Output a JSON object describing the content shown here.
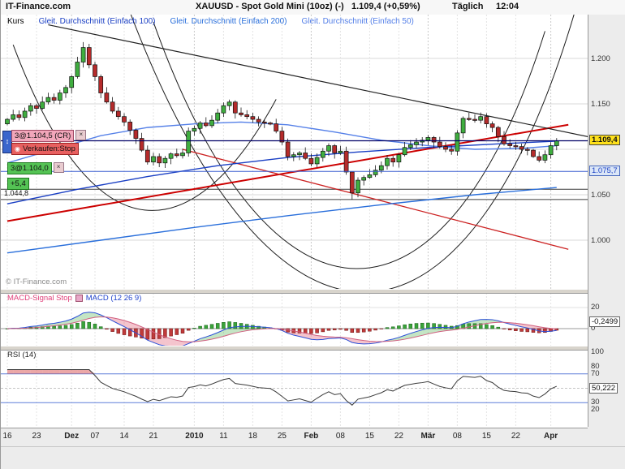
{
  "header": {
    "brand": "IT-Finance.com",
    "title": "XAUUSD - Spot Gold Mini (10oz) (-)",
    "quote": "1.109,4 (+0,59%)",
    "period": "Täglich",
    "time": "12:04"
  },
  "icons": {
    "close": "×",
    "drag": "↕",
    "eye": "◉"
  },
  "price_panel": {
    "name": "Kurs",
    "legend": [
      {
        "label": "Gleit. Durchschnitt (Einfach 100)"
      },
      {
        "label": "Gleit. Durchschnitt (Einfach 200)"
      },
      {
        "label": "Gleit. Durchschnitt (Einfach 50)"
      }
    ],
    "orders": {
      "stop_order": "3@1.104,5 (CR)",
      "stop_type": "Verkaufen:Stop",
      "position": "3@1.104,0",
      "pnl": "+5,4",
      "low_level": "1.044,8"
    },
    "watermark": "© IT-Finance.com",
    "price_tag": "1.109,4",
    "stop_tag": "1.075,7"
  },
  "macd_panel": {
    "legend_signal": "MACD-Signal Stop",
    "legend_macd": "MACD (12 26 9)",
    "value": "-0,2499"
  },
  "rsi_panel": {
    "label": "RSI (14)",
    "value": "50,222"
  },
  "chart_data": {
    "type": "candlestick",
    "first_open": 1128,
    "closes": [
      1133,
      1138,
      1135,
      1142,
      1148,
      1145,
      1152,
      1157,
      1154,
      1162,
      1168,
      1180,
      1196,
      1212,
      1193,
      1180,
      1162,
      1152,
      1142,
      1136,
      1130,
      1121,
      1112,
      1099,
      1086,
      1092,
      1085,
      1090,
      1095,
      1093,
      1096,
      1120,
      1123,
      1129,
      1126,
      1132,
      1140,
      1148,
      1152,
      1140,
      1138,
      1136,
      1133,
      1130,
      1129,
      1128,
      1120,
      1108,
      1092,
      1094,
      1096,
      1090,
      1084,
      1091,
      1098,
      1104,
      1096,
      1098,
      1075,
      1052,
      1066,
      1069,
      1072,
      1077,
      1082,
      1090,
      1086,
      1094,
      1102,
      1105,
      1108,
      1110,
      1113,
      1108,
      1103,
      1100,
      1098,
      1118,
      1134,
      1133,
      1132,
      1136,
      1128,
      1124,
      1114,
      1106,
      1104,
      1103,
      1100,
      1099,
      1092,
      1088,
      1094,
      1104,
      1109.4
    ],
    "wick_overrides": {
      "13": [
        1218,
        1190
      ],
      "59": [
        1075,
        1045
      ]
    },
    "ylim": [
      950,
      1260
    ],
    "grid_prices": [
      1200,
      1150,
      1100,
      1050,
      1000
    ],
    "price_ticks": [
      {
        "label": "1.200",
        "p": 1200
      },
      {
        "label": "1.150",
        "p": 1150
      },
      {
        "label": "1.050",
        "p": 1050
      },
      {
        "label": "1.000",
        "p": 1000
      }
    ],
    "current_price": 1109.4,
    "stop_price": 1075.7,
    "levels": [
      1056,
      1044.8
    ],
    "ma": [
      {
        "name": "SMA100",
        "color": "#1a3fc4",
        "points": [
          [
            0,
            1040
          ],
          [
            12,
            1056
          ],
          [
            24,
            1070
          ],
          [
            36,
            1082
          ],
          [
            48,
            1091
          ],
          [
            60,
            1097
          ],
          [
            72,
            1102
          ],
          [
            84,
            1106
          ],
          [
            94,
            1109
          ]
        ]
      },
      {
        "name": "SMA200",
        "color": "#2a6fdb",
        "points": [
          [
            0,
            986
          ],
          [
            16,
            1000
          ],
          [
            32,
            1014
          ],
          [
            48,
            1027
          ],
          [
            64,
            1039
          ],
          [
            80,
            1050
          ],
          [
            94,
            1058
          ]
        ]
      },
      {
        "name": "SMA50",
        "color": "#5580e8",
        "points": [
          [
            0,
            1085
          ],
          [
            8,
            1100
          ],
          [
            16,
            1115
          ],
          [
            24,
            1124
          ],
          [
            32,
            1128
          ],
          [
            40,
            1130
          ],
          [
            48,
            1127
          ],
          [
            56,
            1119
          ],
          [
            64,
            1110
          ],
          [
            72,
            1104
          ],
          [
            80,
            1100
          ],
          [
            88,
            1101
          ],
          [
            94,
            1104
          ]
        ]
      }
    ],
    "trendlines": [
      {
        "color": "#cc0000",
        "width": 2,
        "points": [
          [
            0,
            1021
          ],
          [
            96,
            1127
          ]
        ]
      },
      {
        "color": "#cc2222",
        "width": 1.3,
        "points": [
          [
            30,
            1100
          ],
          [
            96,
            990
          ]
        ]
      },
      {
        "color": "#222222",
        "width": 1.2,
        "points": [
          [
            7,
            1237
          ],
          [
            100,
            1113
          ]
        ]
      }
    ],
    "arcs": [
      {
        "p0": [
          1,
          1215
        ],
        "c1": [
          15,
          975
        ],
        "c2": [
          32,
          990
        ],
        "p1": [
          46,
          1155
        ]
      },
      {
        "p0": [
          25,
          1240
        ],
        "c1": [
          45,
          880
        ],
        "c2": [
          75,
          880
        ],
        "p1": [
          92,
          1230
        ]
      },
      {
        "p0": [
          20,
          1268
        ],
        "c1": [
          45,
          830
        ],
        "c2": [
          80,
          830
        ],
        "p1": [
          99,
          1295
        ]
      }
    ],
    "x_labels": [
      {
        "label": "16",
        "i": 0,
        "bold": false
      },
      {
        "label": "23",
        "i": 5,
        "bold": false
      },
      {
        "label": "Dez",
        "i": 11,
        "bold": true
      },
      {
        "label": "07",
        "i": 15,
        "bold": false
      },
      {
        "label": "14",
        "i": 20,
        "bold": false
      },
      {
        "label": "21",
        "i": 25,
        "bold": false
      },
      {
        "label": "2010",
        "i": 32,
        "bold": true
      },
      {
        "label": "11",
        "i": 37,
        "bold": false
      },
      {
        "label": "18",
        "i": 42,
        "bold": false
      },
      {
        "label": "25",
        "i": 47,
        "bold": false
      },
      {
        "label": "Feb",
        "i": 52,
        "bold": true
      },
      {
        "label": "08",
        "i": 57,
        "bold": false
      },
      {
        "label": "15",
        "i": 62,
        "bold": false
      },
      {
        "label": "22",
        "i": 67,
        "bold": false
      },
      {
        "label": "Mär",
        "i": 72,
        "bold": true
      },
      {
        "label": "08",
        "i": 77,
        "bold": false
      },
      {
        "label": "15",
        "i": 82,
        "bold": false
      },
      {
        "label": "22",
        "i": 87,
        "bold": false
      },
      {
        "label": "Apr",
        "i": 93,
        "bold": true
      }
    ],
    "macd": {
      "params": [
        12,
        26,
        9
      ],
      "ticks": [
        {
          "label": "20",
          "v": 20
        },
        {
          "label": "0",
          "v": 0
        }
      ]
    },
    "rsi": {
      "period": 14,
      "lines": [
        70,
        30
      ],
      "mid": 50,
      "ticks": [
        {
          "label": "100",
          "v": 100
        },
        {
          "label": "80",
          "v": 80
        },
        {
          "label": "70",
          "v": 70
        },
        {
          "label": "50",
          "v": 50
        },
        {
          "label": "30",
          "v": 30
        },
        {
          "label": "20",
          "v": 20
        }
      ]
    }
  }
}
